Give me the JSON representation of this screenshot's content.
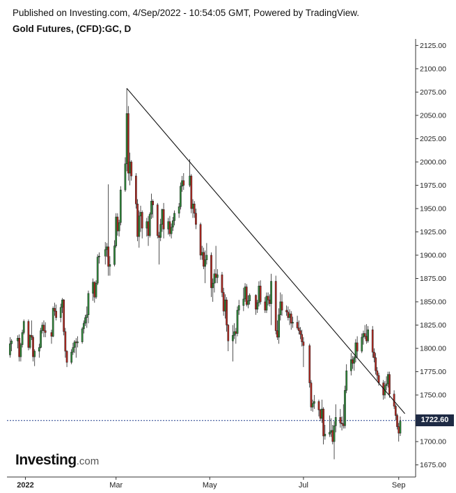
{
  "header": {
    "published": "Published on Investing.com, 4/Sep/2022 - 10:54:05 GMT, Powered by TradingView.",
    "title": "Gold Futures, (CFD):GC, D"
  },
  "logo": {
    "brand": "Investing",
    "suffix": ".com"
  },
  "colors": {
    "up": "#2e8b3a",
    "down": "#b3261e",
    "trendline": "#111111",
    "last_price_line": "#1e3a8a",
    "last_price_bg": "#1e2a44"
  },
  "chart_data": {
    "type": "candlestick",
    "ylim": [
      1662,
      2132
    ],
    "y_ticks": [
      "2125.00",
      "2100.00",
      "2075.00",
      "2050.00",
      "2025.00",
      "2000.00",
      "1975.00",
      "1950.00",
      "1925.00",
      "1900.00",
      "1875.00",
      "1850.00",
      "1825.00",
      "1800.00",
      "1775.00",
      "1750.00",
      "1725.00",
      "1700.00",
      "1675.00"
    ],
    "x_ticks": [
      {
        "label": "2022",
        "date": "2022-01-01",
        "bold": true
      },
      {
        "label": "Mar",
        "date": "2022-03-01",
        "bold": false
      },
      {
        "label": "May",
        "date": "2022-05-01",
        "bold": false
      },
      {
        "label": "Jul",
        "date": "2022-07-01",
        "bold": false
      },
      {
        "label": "Sep",
        "date": "2022-09-01",
        "bold": false
      }
    ],
    "last_price": 1722.6,
    "last_price_label": "1722.60",
    "trendline": [
      {
        "date": "2022-03-08",
        "value": 2079
      },
      {
        "date": "2022-09-05",
        "value": 1730
      }
    ],
    "ohlc": [
      [
        "2021-12-22",
        1793,
        1812,
        1790,
        1805
      ],
      [
        "2021-12-23",
        1805,
        1810,
        1797,
        1808
      ],
      [
        "2021-12-27",
        1808,
        1814,
        1800,
        1811
      ],
      [
        "2021-12-28",
        1811,
        1815,
        1786,
        1791
      ],
      [
        "2021-12-29",
        1791,
        1806,
        1786,
        1804
      ],
      [
        "2021-12-30",
        1804,
        1820,
        1801,
        1817
      ],
      [
        "2021-12-31",
        1817,
        1831,
        1815,
        1829
      ],
      [
        "2022-01-03",
        1829,
        1831,
        1798,
        1801
      ],
      [
        "2022-01-04",
        1801,
        1815,
        1799,
        1814
      ],
      [
        "2022-01-05",
        1814,
        1830,
        1809,
        1812
      ],
      [
        "2022-01-06",
        1812,
        1814,
        1786,
        1791
      ],
      [
        "2022-01-07",
        1791,
        1799,
        1781,
        1797
      ],
      [
        "2022-01-10",
        1797,
        1805,
        1790,
        1801
      ],
      [
        "2022-01-11",
        1801,
        1822,
        1800,
        1819
      ],
      [
        "2022-01-12",
        1819,
        1828,
        1816,
        1825
      ],
      [
        "2022-01-13",
        1825,
        1830,
        1812,
        1819
      ],
      [
        "2022-01-14",
        1819,
        1828,
        1812,
        1817
      ],
      [
        "2022-01-18",
        1817,
        1820,
        1805,
        1813
      ],
      [
        "2022-01-19",
        1813,
        1845,
        1812,
        1843
      ],
      [
        "2022-01-20",
        1843,
        1849,
        1835,
        1840
      ],
      [
        "2022-01-21",
        1840,
        1847,
        1830,
        1833
      ],
      [
        "2022-01-24",
        1833,
        1848,
        1828,
        1844
      ],
      [
        "2022-01-25",
        1844,
        1854,
        1838,
        1852
      ],
      [
        "2022-01-26",
        1852,
        1853,
        1814,
        1818
      ],
      [
        "2022-01-27",
        1818,
        1822,
        1790,
        1797
      ],
      [
        "2022-01-28",
        1797,
        1798,
        1780,
        1785
      ],
      [
        "2022-01-31",
        1785,
        1799,
        1783,
        1796
      ],
      [
        "2022-02-01",
        1796,
        1806,
        1793,
        1801
      ],
      [
        "2022-02-02",
        1801,
        1809,
        1795,
        1807
      ],
      [
        "2022-02-03",
        1807,
        1811,
        1790,
        1806
      ],
      [
        "2022-02-04",
        1806,
        1813,
        1801,
        1807
      ],
      [
        "2022-02-07",
        1807,
        1823,
        1805,
        1821
      ],
      [
        "2022-02-08",
        1821,
        1830,
        1816,
        1827
      ],
      [
        "2022-02-09",
        1827,
        1836,
        1824,
        1833
      ],
      [
        "2022-02-10",
        1833,
        1845,
        1822,
        1836
      ],
      [
        "2022-02-11",
        1836,
        1862,
        1827,
        1859
      ],
      [
        "2022-02-14",
        1859,
        1875,
        1851,
        1871
      ],
      [
        "2022-02-15",
        1871,
        1872,
        1849,
        1855
      ],
      [
        "2022-02-16",
        1855,
        1873,
        1853,
        1870
      ],
      [
        "2022-02-17",
        1870,
        1901,
        1868,
        1898
      ],
      [
        "2022-02-18",
        1898,
        1903,
        1891,
        1899
      ],
      [
        "2022-02-22",
        1899,
        1914,
        1890,
        1906
      ],
      [
        "2022-02-23",
        1906,
        1913,
        1898,
        1909
      ],
      [
        "2022-02-24",
        1909,
        1976,
        1878,
        1888
      ],
      [
        "2022-02-25",
        1888,
        1899,
        1878,
        1890
      ],
      [
        "2022-02-28",
        1890,
        1916,
        1888,
        1910
      ],
      [
        "2022-03-01",
        1910,
        1945,
        1908,
        1941
      ],
      [
        "2022-03-02",
        1941,
        1945,
        1921,
        1926
      ],
      [
        "2022-03-03",
        1926,
        1938,
        1920,
        1935
      ],
      [
        "2022-03-04",
        1935,
        1974,
        1932,
        1970
      ],
      [
        "2022-03-07",
        1970,
        2005,
        1968,
        1998
      ],
      [
        "2022-03-08",
        1998,
        2079,
        1990,
        2052
      ],
      [
        "2022-03-09",
        2052,
        2060,
        1980,
        1988
      ],
      [
        "2022-03-10",
        1988,
        2010,
        1975,
        2000
      ],
      [
        "2022-03-11",
        2000,
        2002,
        1980,
        1985
      ],
      [
        "2022-03-14",
        1985,
        1988,
        1950,
        1955
      ],
      [
        "2022-03-15",
        1955,
        1960,
        1915,
        1920
      ],
      [
        "2022-03-16",
        1920,
        1948,
        1908,
        1942
      ],
      [
        "2022-03-17",
        1942,
        1953,
        1925,
        1946
      ],
      [
        "2022-03-18",
        1946,
        1948,
        1918,
        1929
      ],
      [
        "2022-03-21",
        1929,
        1940,
        1920,
        1936
      ],
      [
        "2022-03-22",
        1936,
        1942,
        1910,
        1921
      ],
      [
        "2022-03-23",
        1921,
        1946,
        1919,
        1944
      ],
      [
        "2022-03-24",
        1944,
        1966,
        1939,
        1958
      ],
      [
        "2022-03-25",
        1958,
        1960,
        1940,
        1954
      ],
      [
        "2022-03-28",
        1954,
        1956,
        1918,
        1921
      ],
      [
        "2022-03-29",
        1921,
        1925,
        1890,
        1919
      ],
      [
        "2022-03-30",
        1919,
        1939,
        1915,
        1933
      ],
      [
        "2022-03-31",
        1933,
        1950,
        1925,
        1949
      ],
      [
        "2022-04-01",
        1949,
        1956,
        1918,
        1928
      ],
      [
        "2022-04-04",
        1928,
        1940,
        1922,
        1936
      ],
      [
        "2022-04-05",
        1936,
        1942,
        1920,
        1923
      ],
      [
        "2022-04-06",
        1923,
        1934,
        1918,
        1930
      ],
      [
        "2022-04-07",
        1930,
        1941,
        1926,
        1937
      ],
      [
        "2022-04-08",
        1937,
        1948,
        1932,
        1945
      ],
      [
        "2022-04-11",
        1945,
        1956,
        1940,
        1952
      ],
      [
        "2022-04-12",
        1952,
        1978,
        1949,
        1974
      ],
      [
        "2022-04-13",
        1974,
        1985,
        1968,
        1980
      ],
      [
        "2022-04-14",
        1980,
        1988,
        1970,
        1975
      ],
      [
        "2022-04-18",
        1975,
        2003,
        1973,
        1985
      ],
      [
        "2022-04-19",
        1985,
        1987,
        1945,
        1950
      ],
      [
        "2022-04-20",
        1950,
        1960,
        1940,
        1955
      ],
      [
        "2022-04-21",
        1955,
        1958,
        1940,
        1945
      ],
      [
        "2022-04-22",
        1945,
        1950,
        1928,
        1933
      ],
      [
        "2022-04-25",
        1933,
        1935,
        1895,
        1900
      ],
      [
        "2022-04-26",
        1900,
        1910,
        1895,
        1903
      ],
      [
        "2022-04-27",
        1903,
        1908,
        1885,
        1888
      ],
      [
        "2022-04-28",
        1888,
        1905,
        1870,
        1895
      ],
      [
        "2022-04-29",
        1895,
        1913,
        1890,
        1900
      ],
      [
        "2022-05-02",
        1900,
        1903,
        1855,
        1865
      ],
      [
        "2022-05-03",
        1865,
        1875,
        1850,
        1870
      ],
      [
        "2022-05-04",
        1870,
        1885,
        1860,
        1880
      ],
      [
        "2022-05-05",
        1880,
        1910,
        1870,
        1876
      ],
      [
        "2022-05-06",
        1876,
        1885,
        1870,
        1879
      ],
      [
        "2022-05-09",
        1879,
        1882,
        1855,
        1860
      ],
      [
        "2022-05-10",
        1860,
        1865,
        1835,
        1840
      ],
      [
        "2022-05-11",
        1840,
        1858,
        1832,
        1852
      ],
      [
        "2022-05-12",
        1852,
        1855,
        1818,
        1825
      ],
      [
        "2022-05-13",
        1825,
        1826,
        1797,
        1808
      ],
      [
        "2022-05-16",
        1808,
        1825,
        1786,
        1814
      ],
      [
        "2022-05-17",
        1814,
        1827,
        1810,
        1818
      ],
      [
        "2022-05-18",
        1818,
        1822,
        1805,
        1816
      ],
      [
        "2022-05-19",
        1816,
        1845,
        1813,
        1841
      ],
      [
        "2022-05-20",
        1841,
        1852,
        1836,
        1846
      ],
      [
        "2022-05-23",
        1846,
        1865,
        1840,
        1853
      ],
      [
        "2022-05-24",
        1853,
        1870,
        1850,
        1866
      ],
      [
        "2022-05-25",
        1866,
        1869,
        1845,
        1847
      ],
      [
        "2022-05-26",
        1847,
        1857,
        1843,
        1851
      ],
      [
        "2022-05-27",
        1851,
        1859,
        1847,
        1857
      ],
      [
        "2022-05-31",
        1857,
        1858,
        1836,
        1842
      ],
      [
        "2022-06-01",
        1842,
        1852,
        1838,
        1849
      ],
      [
        "2022-06-02",
        1849,
        1872,
        1845,
        1867
      ],
      [
        "2022-06-03",
        1867,
        1873,
        1847,
        1850
      ],
      [
        "2022-06-06",
        1850,
        1855,
        1838,
        1841
      ],
      [
        "2022-06-07",
        1841,
        1860,
        1838,
        1856
      ],
      [
        "2022-06-08",
        1856,
        1860,
        1846,
        1852
      ],
      [
        "2022-06-09",
        1852,
        1858,
        1845,
        1848
      ],
      [
        "2022-06-10",
        1848,
        1880,
        1825,
        1872
      ],
      [
        "2022-06-13",
        1872,
        1878,
        1815,
        1819
      ],
      [
        "2022-06-14",
        1819,
        1830,
        1809,
        1812
      ],
      [
        "2022-06-15",
        1812,
        1843,
        1805,
        1836
      ],
      [
        "2022-06-16",
        1836,
        1860,
        1830,
        1850
      ],
      [
        "2022-06-17",
        1850,
        1858,
        1835,
        1841
      ],
      [
        "2022-06-20",
        1841,
        1846,
        1835,
        1839
      ],
      [
        "2022-06-21",
        1839,
        1845,
        1830,
        1833
      ],
      [
        "2022-06-22",
        1833,
        1842,
        1825,
        1837
      ],
      [
        "2022-06-23",
        1837,
        1840,
        1820,
        1827
      ],
      [
        "2022-06-24",
        1827,
        1834,
        1822,
        1828
      ],
      [
        "2022-06-27",
        1828,
        1835,
        1820,
        1822
      ],
      [
        "2022-06-28",
        1822,
        1830,
        1815,
        1819
      ],
      [
        "2022-06-29",
        1819,
        1823,
        1810,
        1815
      ],
      [
        "2022-06-30",
        1815,
        1820,
        1802,
        1807
      ],
      [
        "2022-07-01",
        1807,
        1812,
        1780,
        1803
      ],
      [
        "2022-07-05",
        1803,
        1805,
        1758,
        1763
      ],
      [
        "2022-07-06",
        1763,
        1766,
        1733,
        1737
      ],
      [
        "2022-07-07",
        1737,
        1745,
        1732,
        1741
      ],
      [
        "2022-07-08",
        1741,
        1750,
        1735,
        1743
      ],
      [
        "2022-07-11",
        1743,
        1745,
        1727,
        1734
      ],
      [
        "2022-07-12",
        1734,
        1735,
        1722,
        1725
      ],
      [
        "2022-07-13",
        1725,
        1745,
        1720,
        1735
      ],
      [
        "2022-07-14",
        1735,
        1737,
        1697,
        1706
      ],
      [
        "2022-07-15",
        1706,
        1718,
        1702,
        1708
      ],
      [
        "2022-07-18",
        1708,
        1728,
        1705,
        1710
      ],
      [
        "2022-07-19",
        1710,
        1725,
        1705,
        1712
      ],
      [
        "2022-07-20",
        1712,
        1718,
        1697,
        1700
      ],
      [
        "2022-07-21",
        1700,
        1722,
        1681,
        1717
      ],
      [
        "2022-07-22",
        1717,
        1740,
        1710,
        1726
      ],
      [
        "2022-07-25",
        1726,
        1735,
        1715,
        1720
      ],
      [
        "2022-07-26",
        1720,
        1727,
        1712,
        1719
      ],
      [
        "2022-07-27",
        1719,
        1740,
        1714,
        1717
      ],
      [
        "2022-07-28",
        1717,
        1760,
        1714,
        1755
      ],
      [
        "2022-07-29",
        1755,
        1783,
        1752,
        1776
      ],
      [
        "2022-08-01",
        1776,
        1795,
        1771,
        1788
      ],
      [
        "2022-08-02",
        1788,
        1792,
        1778,
        1784
      ],
      [
        "2022-08-03",
        1784,
        1792,
        1776,
        1790
      ],
      [
        "2022-08-04",
        1790,
        1810,
        1785,
        1806
      ],
      [
        "2022-08-05",
        1806,
        1813,
        1790,
        1797
      ],
      [
        "2022-08-08",
        1797,
        1816,
        1795,
        1812
      ],
      [
        "2022-08-09",
        1812,
        1819,
        1804,
        1816
      ],
      [
        "2022-08-10",
        1816,
        1825,
        1810,
        1813
      ],
      [
        "2022-08-11",
        1813,
        1826,
        1805,
        1808
      ],
      [
        "2022-08-12",
        1808,
        1824,
        1806,
        1820
      ],
      [
        "2022-08-15",
        1820,
        1824,
        1790,
        1796
      ],
      [
        "2022-08-16",
        1796,
        1800,
        1785,
        1790
      ],
      [
        "2022-08-17",
        1790,
        1795,
        1772,
        1776
      ],
      [
        "2022-08-18",
        1776,
        1780,
        1766,
        1771
      ],
      [
        "2022-08-19",
        1771,
        1774,
        1760,
        1763
      ],
      [
        "2022-08-22",
        1763,
        1766,
        1745,
        1750
      ],
      [
        "2022-08-23",
        1750,
        1765,
        1746,
        1760
      ],
      [
        "2022-08-24",
        1760,
        1770,
        1755,
        1762
      ],
      [
        "2022-08-25",
        1762,
        1775,
        1758,
        1772
      ],
      [
        "2022-08-26",
        1772,
        1775,
        1747,
        1751
      ],
      [
        "2022-08-29",
        1751,
        1755,
        1735,
        1738
      ],
      [
        "2022-08-30",
        1738,
        1740,
        1723,
        1728
      ],
      [
        "2022-08-31",
        1728,
        1730,
        1713,
        1716
      ],
      [
        "2022-09-01",
        1716,
        1720,
        1700,
        1709
      ],
      [
        "2022-09-02",
        1709,
        1727,
        1706,
        1722
      ]
    ]
  }
}
